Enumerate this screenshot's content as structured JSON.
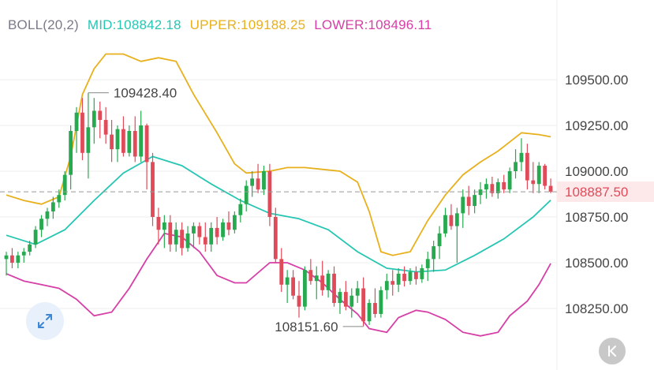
{
  "indicator": {
    "label": "BOLL(20,2)",
    "mid_label": "MID:",
    "mid_value": "108842.18",
    "upper_label": "UPPER:",
    "upper_value": "109188.25",
    "lower_label": "LOWER:",
    "lower_value": "108496.11"
  },
  "colors": {
    "boll": "#7a7a8a",
    "mid": "#26c6b3",
    "upper": "#e8b01c",
    "lower": "#d63fa6",
    "up_candle": "#27a94f",
    "down_candle": "#e04b5a",
    "price_tag_bg": "#fde9ea",
    "price_tag_text": "#e04b5a",
    "grid": "#eeeeee",
    "axis_text": "#444444"
  },
  "icons": {
    "expand": "expand-arrows-icon",
    "back": "chevron-back-to-latest-icon"
  },
  "chart_data": {
    "type": "candlestick",
    "y_ticks": [
      "109500.00",
      "109250.00",
      "109000.00",
      "108750.00",
      "108500.00",
      "108250.00"
    ],
    "ylim": [
      108150,
      109700
    ],
    "current_price": "108887.50",
    "high_label": "109428.40",
    "low_label": "108151.60",
    "candles": [
      [
        108520,
        108560,
        108430,
        108540
      ],
      [
        108540,
        108580,
        108470,
        108500
      ],
      [
        108500,
        108560,
        108470,
        108540
      ],
      [
        108540,
        108580,
        108500,
        108560
      ],
      [
        108560,
        108620,
        108540,
        108600
      ],
      [
        108600,
        108700,
        108580,
        108680
      ],
      [
        108680,
        108760,
        108640,
        108740
      ],
      [
        108740,
        108800,
        108700,
        108780
      ],
      [
        108780,
        108860,
        108740,
        108830
      ],
      [
        108830,
        108900,
        108800,
        108870
      ],
      [
        108870,
        109000,
        108840,
        108980
      ],
      [
        108980,
        109250,
        108900,
        109220
      ],
      [
        109220,
        109350,
        109100,
        109320
      ],
      [
        109320,
        109400,
        109060,
        109100
      ],
      [
        109100,
        109428,
        108960,
        109240
      ],
      [
        109240,
        109400,
        109150,
        109330
      ],
      [
        109330,
        109380,
        109180,
        109280
      ],
      [
        109280,
        109350,
        109150,
        109200
      ],
      [
        109200,
        109280,
        109050,
        109120
      ],
      [
        109120,
        109250,
        109050,
        109230
      ],
      [
        109230,
        109300,
        109080,
        109100
      ],
      [
        109100,
        109250,
        109080,
        109220
      ],
      [
        109220,
        109300,
        109050,
        109080
      ],
      [
        109080,
        109330,
        109050,
        109250
      ],
      [
        109250,
        109260,
        108900,
        109050
      ],
      [
        109050,
        109100,
        108700,
        108750
      ],
      [
        108750,
        108800,
        108600,
        108680
      ],
      [
        108680,
        108760,
        108580,
        108720
      ],
      [
        108720,
        108760,
        108560,
        108600
      ],
      [
        108600,
        108720,
        108560,
        108680
      ],
      [
        108680,
        108720,
        108540,
        108580
      ],
      [
        108580,
        108700,
        108560,
        108660
      ],
      [
        108660,
        108720,
        108580,
        108700
      ],
      [
        108700,
        108720,
        108600,
        108640
      ],
      [
        108640,
        108720,
        108560,
        108600
      ],
      [
        108600,
        108720,
        108560,
        108690
      ],
      [
        108690,
        108750,
        108600,
        108640
      ],
      [
        108640,
        108740,
        108620,
        108720
      ],
      [
        108720,
        108780,
        108650,
        108680
      ],
      [
        108680,
        108780,
        108660,
        108760
      ],
      [
        108760,
        108850,
        108720,
        108820
      ],
      [
        108820,
        108950,
        108780,
        108920
      ],
      [
        108920,
        109000,
        108860,
        108960
      ],
      [
        108960,
        109040,
        108880,
        108900
      ],
      [
        108900,
        109030,
        108870,
        109000
      ],
      [
        109000,
        109040,
        108700,
        108750
      ],
      [
        108750,
        108800,
        108500,
        108520
      ],
      [
        108520,
        108580,
        108340,
        108380
      ],
      [
        108380,
        108460,
        108280,
        108420
      ],
      [
        108420,
        108460,
        108300,
        108320
      ],
      [
        108320,
        108400,
        108200,
        108260
      ],
      [
        108260,
        108480,
        108240,
        108460
      ],
      [
        108460,
        108520,
        108380,
        108400
      ],
      [
        108400,
        108480,
        108300,
        108430
      ],
      [
        108430,
        108510,
        108320,
        108350
      ],
      [
        108350,
        108460,
        108310,
        108440
      ],
      [
        108440,
        108480,
        108260,
        108280
      ],
      [
        108280,
        108360,
        108220,
        108340
      ],
      [
        108340,
        108400,
        108240,
        108260
      ],
      [
        108260,
        108360,
        108200,
        108320
      ],
      [
        108320,
        108400,
        108280,
        108360
      ],
      [
        108360,
        108420,
        108152,
        108180
      ],
      [
        108180,
        108300,
        108160,
        108280
      ],
      [
        108280,
        108360,
        108200,
        108220
      ],
      [
        108220,
        108370,
        108200,
        108350
      ],
      [
        108350,
        108440,
        108300,
        108400
      ],
      [
        108400,
        108460,
        108320,
        108380
      ],
      [
        108380,
        108470,
        108340,
        108440
      ],
      [
        108440,
        108480,
        108370,
        108400
      ],
      [
        108400,
        108470,
        108380,
        108450
      ],
      [
        108450,
        108480,
        108380,
        108410
      ],
      [
        108410,
        108490,
        108390,
        108470
      ],
      [
        108470,
        108560,
        108400,
        108520
      ],
      [
        108520,
        108620,
        108450,
        108590
      ],
      [
        108590,
        108700,
        108520,
        108660
      ],
      [
        108660,
        108800,
        108640,
        108760
      ],
      [
        108760,
        108820,
        108680,
        108700
      ],
      [
        108700,
        108800,
        108500,
        108770
      ],
      [
        108770,
        108900,
        108690,
        108860
      ],
      [
        108860,
        108920,
        108760,
        108810
      ],
      [
        108810,
        108900,
        108770,
        108870
      ],
      [
        108870,
        108940,
        108820,
        108900
      ],
      [
        108900,
        108960,
        108850,
        108930
      ],
      [
        108930,
        108970,
        108860,
        108880
      ],
      [
        108880,
        108960,
        108850,
        108940
      ],
      [
        108940,
        108980,
        108880,
        108900
      ],
      [
        108900,
        109020,
        108880,
        109000
      ],
      [
        109000,
        109120,
        108960,
        109050
      ],
      [
        109050,
        109180,
        109000,
        109100
      ],
      [
        109100,
        109150,
        108900,
        108950
      ],
      [
        108950,
        109050,
        108880,
        108930
      ],
      [
        108930,
        109050,
        108880,
        109030
      ],
      [
        109030,
        109040,
        108900,
        108920
      ],
      [
        108920,
        108960,
        108880,
        108888
      ]
    ],
    "mid_series": [
      [
        0,
        108650
      ],
      [
        5,
        108600
      ],
      [
        10,
        108680
      ],
      [
        15,
        108840
      ],
      [
        20,
        108990
      ],
      [
        25,
        109080
      ],
      [
        30,
        109030
      ],
      [
        35,
        108930
      ],
      [
        40,
        108840
      ],
      [
        45,
        108770
      ],
      [
        50,
        108740
      ],
      [
        55,
        108680
      ],
      [
        60,
        108560
      ],
      [
        65,
        108470
      ],
      [
        70,
        108450
      ],
      [
        75,
        108460
      ],
      [
        80,
        108540
      ],
      [
        85,
        108630
      ],
      [
        90,
        108750
      ],
      [
        93,
        108842
      ]
    ],
    "upper_series": [
      [
        0,
        108870
      ],
      [
        3,
        108840
      ],
      [
        6,
        108820
      ],
      [
        9,
        108860
      ],
      [
        11,
        109080
      ],
      [
        13,
        109420
      ],
      [
        15,
        109560
      ],
      [
        17,
        109640
      ],
      [
        20,
        109640
      ],
      [
        23,
        109600
      ],
      [
        26,
        109620
      ],
      [
        29,
        109600
      ],
      [
        32,
        109420
      ],
      [
        36,
        109210
      ],
      [
        39,
        109040
      ],
      [
        41,
        108990
      ],
      [
        45,
        109000
      ],
      [
        48,
        109020
      ],
      [
        51,
        109020
      ],
      [
        54,
        109010
      ],
      [
        57,
        109000
      ],
      [
        60,
        108940
      ],
      [
        62,
        108780
      ],
      [
        64,
        108560
      ],
      [
        66,
        108540
      ],
      [
        69,
        108560
      ],
      [
        72,
        108730
      ],
      [
        75,
        108870
      ],
      [
        78,
        108980
      ],
      [
        81,
        109050
      ],
      [
        84,
        109110
      ],
      [
        88,
        109210
      ],
      [
        91,
        109200
      ],
      [
        93,
        109188
      ]
    ],
    "lower_series": [
      [
        0,
        108440
      ],
      [
        3,
        108400
      ],
      [
        6,
        108380
      ],
      [
        9,
        108360
      ],
      [
        12,
        108300
      ],
      [
        15,
        108210
      ],
      [
        18,
        108230
      ],
      [
        21,
        108360
      ],
      [
        24,
        108520
      ],
      [
        27,
        108660
      ],
      [
        30,
        108640
      ],
      [
        33,
        108560
      ],
      [
        36,
        108430
      ],
      [
        39,
        108390
      ],
      [
        41,
        108390
      ],
      [
        45,
        108500
      ],
      [
        48,
        108500
      ],
      [
        51,
        108460
      ],
      [
        54,
        108390
      ],
      [
        57,
        108300
      ],
      [
        60,
        108220
      ],
      [
        62,
        108140
      ],
      [
        65,
        108120
      ],
      [
        67,
        108200
      ],
      [
        70,
        108240
      ],
      [
        72,
        108230
      ],
      [
        75,
        108190
      ],
      [
        78,
        108120
      ],
      [
        81,
        108100
      ],
      [
        84,
        108120
      ],
      [
        86,
        108210
      ],
      [
        89,
        108290
      ],
      [
        91,
        108380
      ],
      [
        93,
        108496
      ]
    ]
  }
}
